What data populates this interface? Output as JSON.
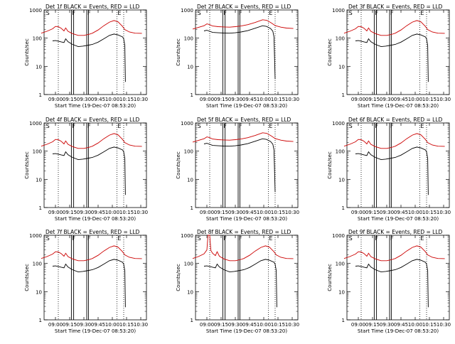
{
  "chart_data": [
    {
      "type": "line",
      "title": "Det 1f BLACK = Events, RED = LLD",
      "xlabel": "Start Time (19-Dec-07 08:53:20)",
      "ylabel": "Counts/sec",
      "xticks": [
        "09:00",
        "09:15",
        "09:30",
        "09:45",
        "10:00",
        "10:15",
        "10:30"
      ],
      "yticks": [
        "1",
        "10",
        "100",
        "1000"
      ],
      "ylim": [
        1,
        1000
      ],
      "yscale": "log",
      "markers": [
        "S",
        "F",
        "F",
        "E"
      ],
      "black_profile": "A",
      "red_profile": "A",
      "series": [
        {
          "name": "BLACK = Events",
          "color": "#000000"
        },
        {
          "name": "RED = LLD",
          "color": "#cc0000"
        }
      ]
    },
    {
      "type": "line",
      "title": "Det 2f BLACK = Events, RED = LLD",
      "xlabel": "Start Time (19-Dec-07 08:53:20)",
      "ylabel": "Counts/sec",
      "xticks": [
        "09:00",
        "09:15",
        "09:30",
        "09:45",
        "10:00",
        "10:15",
        "10:30"
      ],
      "yticks": [
        "1",
        "10",
        "100",
        "1000"
      ],
      "ylim": [
        1,
        1000
      ],
      "yscale": "log",
      "markers": [
        "S",
        "F",
        "F",
        "E"
      ],
      "black_profile": "B",
      "red_profile": "B",
      "series": [
        {
          "name": "BLACK = Events",
          "color": "#000000"
        },
        {
          "name": "RED = LLD",
          "color": "#cc0000"
        }
      ]
    },
    {
      "type": "line",
      "title": "Det 3f BLACK = Events, RED = LLD",
      "xlabel": "Start Time (19-Dec-07 08:53:20)",
      "ylabel": "Counts/sec",
      "xticks": [
        "09:00",
        "09:15",
        "09:30",
        "09:45",
        "10:00",
        "10:15",
        "10:30"
      ],
      "yticks": [
        "1",
        "10",
        "100",
        "1000"
      ],
      "ylim": [
        1,
        1000
      ],
      "yscale": "log",
      "markers": [
        "S",
        "F",
        "F",
        "E"
      ],
      "black_profile": "A",
      "red_profile": "A",
      "series": [
        {
          "name": "BLACK = Events",
          "color": "#000000"
        },
        {
          "name": "RED = LLD",
          "color": "#cc0000"
        }
      ]
    },
    {
      "type": "line",
      "title": "Det 4f BLACK = Events, RED = LLD",
      "xlabel": "Start Time (19-Dec-07 08:53:20)",
      "ylabel": "Counts/sec",
      "xticks": [
        "09:00",
        "09:15",
        "09:30",
        "09:45",
        "10:00",
        "10:15",
        "10:30"
      ],
      "yticks": [
        "1",
        "10",
        "100",
        "1000"
      ],
      "ylim": [
        1,
        1000
      ],
      "yscale": "log",
      "markers": [
        "S",
        "F",
        "F",
        "E"
      ],
      "black_profile": "A",
      "red_profile": "A",
      "series": [
        {
          "name": "BLACK = Events",
          "color": "#000000"
        },
        {
          "name": "RED = LLD",
          "color": "#cc0000"
        }
      ]
    },
    {
      "type": "line",
      "title": "Det 5f BLACK = Events, RED = LLD",
      "xlabel": "Start Time (19-Dec-07 08:53:20)",
      "ylabel": "Counts/sec",
      "xticks": [
        "09:00",
        "09:15",
        "09:30",
        "09:45",
        "10:00",
        "10:15",
        "10:30"
      ],
      "yticks": [
        "1",
        "10",
        "100",
        "1000"
      ],
      "ylim": [
        1,
        1000
      ],
      "yscale": "log",
      "markers": [
        "S",
        "F",
        "F",
        "E"
      ],
      "black_profile": "B",
      "red_profile": "B",
      "series": [
        {
          "name": "BLACK = Events",
          "color": "#000000"
        },
        {
          "name": "RED = LLD",
          "color": "#cc0000"
        }
      ]
    },
    {
      "type": "line",
      "title": "Det 6f BLACK = Events, RED = LLD",
      "xlabel": "Start Time (19-Dec-07 08:53:20)",
      "ylabel": "Counts/sec",
      "xticks": [
        "09:00",
        "09:15",
        "09:30",
        "09:45",
        "10:00",
        "10:15",
        "10:30"
      ],
      "yticks": [
        "1",
        "10",
        "100",
        "1000"
      ],
      "ylim": [
        1,
        1000
      ],
      "yscale": "log",
      "markers": [
        "S",
        "F",
        "F",
        "E"
      ],
      "black_profile": "A",
      "red_profile": "A",
      "series": [
        {
          "name": "BLACK = Events",
          "color": "#000000"
        },
        {
          "name": "RED = LLD",
          "color": "#cc0000"
        }
      ]
    },
    {
      "type": "line",
      "title": "Det 7f BLACK = Events, RED = LLD",
      "xlabel": "Start Time (19-Dec-07 08:53:20)",
      "ylabel": "Counts/sec",
      "xticks": [
        "09:00",
        "09:15",
        "09:30",
        "09:45",
        "10:00",
        "10:15",
        "10:30"
      ],
      "yticks": [
        "1",
        "10",
        "100",
        "1000"
      ],
      "ylim": [
        1,
        1000
      ],
      "yscale": "log",
      "markers": [
        "S",
        "F",
        "F",
        "E"
      ],
      "black_profile": "A",
      "red_profile": "A",
      "series": [
        {
          "name": "BLACK = Events",
          "color": "#000000"
        },
        {
          "name": "RED = LLD",
          "color": "#cc0000"
        }
      ]
    },
    {
      "type": "line",
      "title": "Det 8f BLACK = Events, RED = LLD",
      "xlabel": "Start Time (19-Dec-07 08:53:20)",
      "ylabel": "Counts/sec",
      "xticks": [
        "09:00",
        "09:15",
        "09:30",
        "09:45",
        "10:00",
        "10:15",
        "10:30"
      ],
      "yticks": [
        "1",
        "10",
        "100",
        "1000"
      ],
      "ylim": [
        1,
        1000
      ],
      "yscale": "log",
      "markers": [
        "S",
        "F",
        "F",
        "E"
      ],
      "black_profile": "A",
      "red_profile": "C",
      "series": [
        {
          "name": "BLACK = Events",
          "color": "#000000"
        },
        {
          "name": "RED = LLD",
          "color": "#cc0000"
        }
      ]
    },
    {
      "type": "line",
      "title": "Det 9f BLACK = Events, RED = LLD",
      "xlabel": "Start Time (19-Dec-07 08:53:20)",
      "ylabel": "Counts/sec",
      "xticks": [
        "09:00",
        "09:15",
        "09:30",
        "09:45",
        "10:00",
        "10:15",
        "10:30"
      ],
      "yticks": [
        "1",
        "10",
        "100",
        "1000"
      ],
      "ylim": [
        1,
        1000
      ],
      "yscale": "log",
      "markers": [
        "S",
        "F",
        "F",
        "E"
      ],
      "black_profile": "A",
      "red_profile": "A",
      "series": [
        {
          "name": "BLACK = Events",
          "color": "#000000"
        },
        {
          "name": "RED = LLD",
          "color": "#cc0000"
        }
      ]
    }
  ],
  "profiles": {
    "A": {
      "black": [
        [
          8.95,
          80
        ],
        [
          9.0,
          82
        ],
        [
          9.05,
          78
        ],
        [
          9.1,
          74
        ],
        [
          9.15,
          70
        ],
        [
          9.18,
          95
        ],
        [
          9.22,
          75
        ],
        [
          9.3,
          60
        ],
        [
          9.4,
          50
        ],
        [
          9.48,
          52
        ],
        [
          9.55,
          55
        ],
        [
          9.65,
          60
        ],
        [
          9.75,
          72
        ],
        [
          9.85,
          95
        ],
        [
          9.95,
          125
        ],
        [
          10.03,
          140
        ],
        [
          10.1,
          130
        ],
        [
          10.18,
          110
        ],
        [
          10.2,
          95
        ],
        [
          10.22,
          55
        ],
        [
          10.23,
          2.8
        ]
      ],
      "red": [
        [
          8.75,
          150
        ],
        [
          8.85,
          175
        ],
        [
          8.95,
          215
        ],
        [
          9.0,
          260
        ],
        [
          9.05,
          255
        ],
        [
          9.1,
          225
        ],
        [
          9.15,
          180
        ],
        [
          9.18,
          230
        ],
        [
          9.22,
          175
        ],
        [
          9.3,
          145
        ],
        [
          9.4,
          125
        ],
        [
          9.5,
          125
        ],
        [
          9.58,
          135
        ],
        [
          9.65,
          150
        ],
        [
          9.75,
          195
        ],
        [
          9.85,
          275
        ],
        [
          9.95,
          370
        ],
        [
          10.03,
          420
        ],
        [
          10.1,
          380
        ],
        [
          10.18,
          260
        ],
        [
          10.22,
          200
        ],
        [
          10.3,
          165
        ],
        [
          10.4,
          150
        ],
        [
          10.52,
          148
        ]
      ]
    },
    "B": {
      "black": [
        [
          8.95,
          180
        ],
        [
          9.0,
          190
        ],
        [
          9.05,
          175
        ],
        [
          9.1,
          160
        ],
        [
          9.2,
          155
        ],
        [
          9.3,
          152
        ],
        [
          9.4,
          150
        ],
        [
          9.5,
          155
        ],
        [
          9.6,
          165
        ],
        [
          9.72,
          185
        ],
        [
          9.85,
          225
        ],
        [
          9.98,
          275
        ],
        [
          10.05,
          260
        ],
        [
          10.12,
          220
        ],
        [
          10.16,
          175
        ],
        [
          10.18,
          110
        ],
        [
          10.2,
          3.5
        ]
      ],
      "red": [
        [
          8.75,
          210
        ],
        [
          8.85,
          240
        ],
        [
          8.95,
          275
        ],
        [
          9.0,
          320
        ],
        [
          9.05,
          300
        ],
        [
          9.1,
          270
        ],
        [
          9.2,
          255
        ],
        [
          9.3,
          250
        ],
        [
          9.4,
          245
        ],
        [
          9.5,
          255
        ],
        [
          9.6,
          270
        ],
        [
          9.72,
          300
        ],
        [
          9.85,
          360
        ],
        [
          9.98,
          450
        ],
        [
          10.05,
          430
        ],
        [
          10.12,
          360
        ],
        [
          10.2,
          280
        ],
        [
          10.3,
          245
        ],
        [
          10.4,
          228
        ],
        [
          10.52,
          220
        ]
      ]
    },
    "C": {
      "red": [
        [
          8.75,
          150
        ],
        [
          8.85,
          175
        ],
        [
          8.95,
          220
        ],
        [
          9.0,
          300
        ],
        [
          9.02,
          1000
        ],
        [
          9.05,
          1000
        ],
        [
          9.07,
          290
        ],
        [
          9.1,
          230
        ],
        [
          9.15,
          190
        ],
        [
          9.18,
          260
        ],
        [
          9.22,
          180
        ],
        [
          9.3,
          145
        ],
        [
          9.4,
          125
        ],
        [
          9.5,
          125
        ],
        [
          9.58,
          135
        ],
        [
          9.65,
          150
        ],
        [
          9.75,
          195
        ],
        [
          9.85,
          275
        ],
        [
          9.95,
          370
        ],
        [
          10.03,
          420
        ],
        [
          10.1,
          380
        ],
        [
          10.18,
          260
        ],
        [
          10.22,
          200
        ],
        [
          10.3,
          165
        ],
        [
          10.4,
          150
        ],
        [
          10.52,
          148
        ]
      ]
    }
  },
  "marker_times": {
    "dotted": [
      9.05,
      10.08,
      10.2
    ],
    "solid": [
      9.28,
      9.32,
      9.55,
      9.58
    ]
  }
}
